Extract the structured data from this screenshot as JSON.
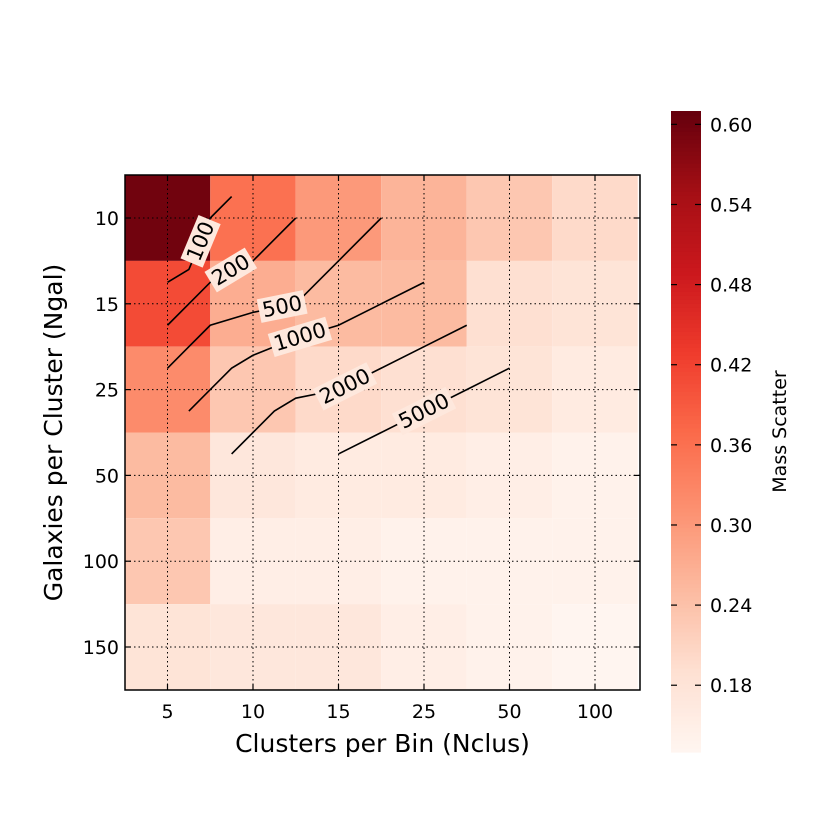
{
  "chart_data": {
    "type": "heatmap",
    "xlabel": "Clusters per Bin (Nclus)",
    "ylabel": "Galaxies per Cluster (Ngal)",
    "x_categories": [
      "5",
      "10",
      "15",
      "25",
      "50",
      "100"
    ],
    "y_categories": [
      "10",
      "15",
      "25",
      "50",
      "100",
      "150"
    ],
    "values": [
      [
        0.6,
        0.36,
        0.3,
        0.26,
        0.23,
        0.2
      ],
      [
        0.41,
        0.27,
        0.25,
        0.25,
        0.19,
        0.18
      ],
      [
        0.32,
        0.23,
        0.2,
        0.19,
        0.18,
        0.16
      ],
      [
        0.25,
        0.17,
        0.16,
        0.16,
        0.15,
        0.14
      ],
      [
        0.23,
        0.15,
        0.15,
        0.14,
        0.14,
        0.14
      ],
      [
        0.18,
        0.17,
        0.17,
        0.15,
        0.14,
        0.13
      ]
    ],
    "colorbar": {
      "label": "Mass Scatter",
      "vmin": 0.13,
      "vmax": 0.61,
      "ticks": [
        "0.60",
        "0.54",
        "0.48",
        "0.42",
        "0.36",
        "0.30",
        "0.24",
        "0.18"
      ],
      "colormap": "Reds",
      "color_low": "#fff5f0",
      "color_high": "#67000d"
    },
    "contours": [
      {
        "label": "100",
        "points": [
          [
            0,
            1.5
          ],
          [
            0.5,
            1.2
          ],
          [
            1,
            0
          ],
          [
            1.5,
            -0.5
          ]
        ]
      },
      {
        "label": "200",
        "points": [
          [
            0,
            2.5
          ],
          [
            0.5,
            2
          ],
          [
            1,
            1.5
          ],
          [
            1.5,
            1.2
          ],
          [
            2,
            1
          ],
          [
            2.5,
            0.5
          ],
          [
            3,
            0
          ]
        ]
      },
      {
        "label": "500",
        "points": [
          [
            0,
            3.5
          ],
          [
            0.5,
            3
          ],
          [
            1,
            2.5
          ],
          [
            2,
            2.2
          ],
          [
            3,
            2
          ],
          [
            3.5,
            1.5
          ],
          [
            4,
            1
          ],
          [
            5,
            0
          ]
        ]
      },
      {
        "label": "1000",
        "points": [
          [
            0.5,
            4.5
          ],
          [
            1,
            4
          ],
          [
            1.5,
            3.5
          ],
          [
            2,
            3.2
          ],
          [
            3,
            2.8
          ],
          [
            4,
            2.5
          ],
          [
            5,
            2
          ],
          [
            6,
            1.5
          ]
        ]
      },
      {
        "label": "2000",
        "points": [
          [
            1.5,
            5.5
          ],
          [
            2,
            5
          ],
          [
            2.5,
            4.5
          ],
          [
            3,
            4.2
          ],
          [
            4,
            4
          ],
          [
            5,
            3.5
          ],
          [
            6,
            3
          ],
          [
            7,
            2.5
          ]
        ]
      },
      {
        "label": "5000",
        "points": [
          [
            4,
            5.5
          ],
          [
            5,
            5
          ],
          [
            6,
            4.5
          ],
          [
            7,
            4
          ],
          [
            8,
            3.5
          ]
        ]
      }
    ],
    "grid": true
  }
}
